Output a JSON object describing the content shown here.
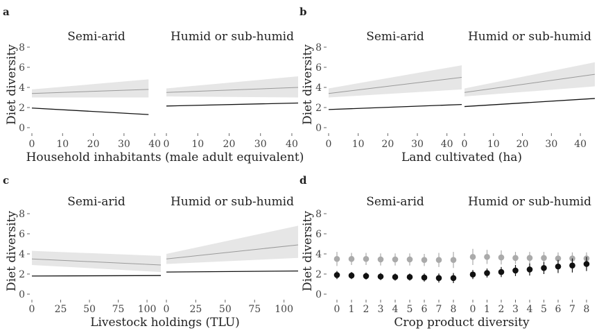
{
  "chart_data": [
    {
      "panel": "a",
      "type": "line",
      "facets": [
        "Semi-arid",
        "Humid or sub-humid"
      ],
      "xlabel": "Household inhabitants (male adult equivalent)",
      "ylabel": "Diet diversity",
      "ylim": [
        0,
        8
      ],
      "yticks": [
        "0",
        "2",
        "4",
        "6",
        "8"
      ],
      "xlim": [
        0,
        42
      ],
      "xticks": [
        0,
        10,
        20,
        30,
        40
      ],
      "xticklabels": [
        "0",
        "10",
        "20",
        "30",
        "40"
      ],
      "series_colors": {
        "upper": "#999999",
        "lower": "#111111",
        "band": "#e6e6e6"
      },
      "panels": [
        {
          "facet": "Semi-arid",
          "x_range": [
            0,
            38
          ],
          "upper": {
            "start": 3.4,
            "end": 3.8,
            "band_start": [
              3.0,
              3.8
            ],
            "band_end": [
              3.0,
              4.8
            ]
          },
          "lower": {
            "start": 1.95,
            "end": 1.3
          }
        },
        {
          "facet": "Humid or sub-humid",
          "x_range": [
            0,
            42
          ],
          "upper": {
            "start": 3.5,
            "end": 4.0,
            "band_start": [
              3.1,
              3.9
            ],
            "band_end": [
              3.0,
              5.1
            ]
          },
          "lower": {
            "start": 2.15,
            "end": 2.45
          }
        }
      ]
    },
    {
      "panel": "b",
      "type": "line",
      "facets": [
        "Semi-arid",
        "Humid or sub-humid"
      ],
      "xlabel": "Land cultivated (ha)",
      "ylabel": "Diet diversity",
      "ylim": [
        0,
        8
      ],
      "yticks": [
        "0",
        "2",
        "4",
        "6",
        "8"
      ],
      "xlim": [
        0,
        45
      ],
      "xticks": [
        0,
        10,
        20,
        30,
        40
      ],
      "xticklabels": [
        "0",
        "10",
        "20",
        "30",
        "40"
      ],
      "series_colors": {
        "upper": "#999999",
        "lower": "#111111",
        "band": "#e6e6e6"
      },
      "panels": [
        {
          "facet": "Semi-arid",
          "x_range": [
            0,
            45
          ],
          "upper": {
            "start": 3.4,
            "end": 5.0,
            "band_start": [
              3.0,
              3.9
            ],
            "band_end": [
              3.8,
              6.2
            ]
          },
          "lower": {
            "start": 1.8,
            "end": 2.3
          }
        },
        {
          "facet": "Humid or sub-humid",
          "x_range": [
            0,
            45
          ],
          "upper": {
            "start": 3.5,
            "end": 5.3,
            "band_start": [
              3.1,
              3.9
            ],
            "band_end": [
              4.1,
              6.5
            ]
          },
          "lower": {
            "start": 2.1,
            "end": 2.9
          }
        }
      ]
    },
    {
      "panel": "c",
      "type": "line",
      "facets": [
        "Semi-arid",
        "Humid or sub-humid"
      ],
      "xlabel": "Livestock holdings (TLU)",
      "ylabel": "Diet diversity",
      "ylim": [
        0,
        8
      ],
      "yticks": [
        "0",
        "2",
        "4",
        "6",
        "8"
      ],
      "xlim": [
        0,
        112
      ],
      "xticks": [
        0,
        25,
        50,
        75,
        100
      ],
      "xticklabels": [
        "0",
        "25",
        "50",
        "75",
        "100"
      ],
      "series_colors": {
        "upper": "#999999",
        "lower": "#111111",
        "band": "#e6e6e6"
      },
      "panels": [
        {
          "facet": "Semi-arid",
          "x_range": [
            0,
            112
          ],
          "upper": {
            "start": 3.5,
            "end": 2.9,
            "band_start": [
              2.9,
              4.3
            ],
            "band_end": [
              2.2,
              3.8
            ]
          },
          "lower": {
            "start": 1.8,
            "end": 1.85
          }
        },
        {
          "facet": "Humid or sub-humid",
          "x_range": [
            0,
            112
          ],
          "upper": {
            "start": 3.5,
            "end": 4.9,
            "band_start": [
              3.0,
              4.0
            ],
            "band_end": [
              3.6,
              6.8
            ]
          },
          "lower": {
            "start": 2.2,
            "end": 2.3
          }
        }
      ]
    },
    {
      "panel": "d",
      "type": "scatter",
      "facets": [
        "Semi-arid",
        "Humid or sub-humid"
      ],
      "xlabel": "Crop product diversity",
      "ylabel": "Diet diversity",
      "ylim": [
        0,
        8
      ],
      "yticks": [
        "0",
        "2",
        "4",
        "6",
        "8"
      ],
      "categories": [
        "0",
        "1",
        "2",
        "3",
        "4",
        "5",
        "6",
        "7",
        "8"
      ],
      "series_colors": {
        "upper": "#aaaaaa",
        "lower": "#111111"
      },
      "panels": [
        {
          "facet": "Semi-arid",
          "upper": {
            "values": [
              3.5,
              3.5,
              3.5,
              3.45,
              3.45,
              3.45,
              3.4,
              3.4,
              3.4
            ],
            "err": [
              0.7,
              0.6,
              0.6,
              0.6,
              0.6,
              0.6,
              0.6,
              0.7,
              0.8
            ]
          },
          "lower": {
            "values": [
              1.9,
              1.85,
              1.8,
              1.75,
              1.7,
              1.7,
              1.65,
              1.6,
              1.6
            ],
            "err": [
              0.4,
              0.35,
              0.35,
              0.35,
              0.35,
              0.35,
              0.4,
              0.45,
              0.5
            ]
          }
        },
        {
          "facet": "Humid or sub-humid",
          "upper": {
            "values": [
              3.7,
              3.7,
              3.65,
              3.6,
              3.6,
              3.6,
              3.55,
              3.55,
              3.55
            ],
            "err": [
              0.8,
              0.7,
              0.7,
              0.6,
              0.6,
              0.6,
              0.6,
              0.6,
              0.6
            ]
          },
          "lower": {
            "values": [
              1.95,
              2.1,
              2.2,
              2.35,
              2.45,
              2.6,
              2.75,
              2.85,
              3.0
            ],
            "err": [
              0.45,
              0.45,
              0.5,
              0.55,
              0.6,
              0.6,
              0.65,
              0.7,
              0.7
            ]
          }
        }
      ]
    }
  ]
}
